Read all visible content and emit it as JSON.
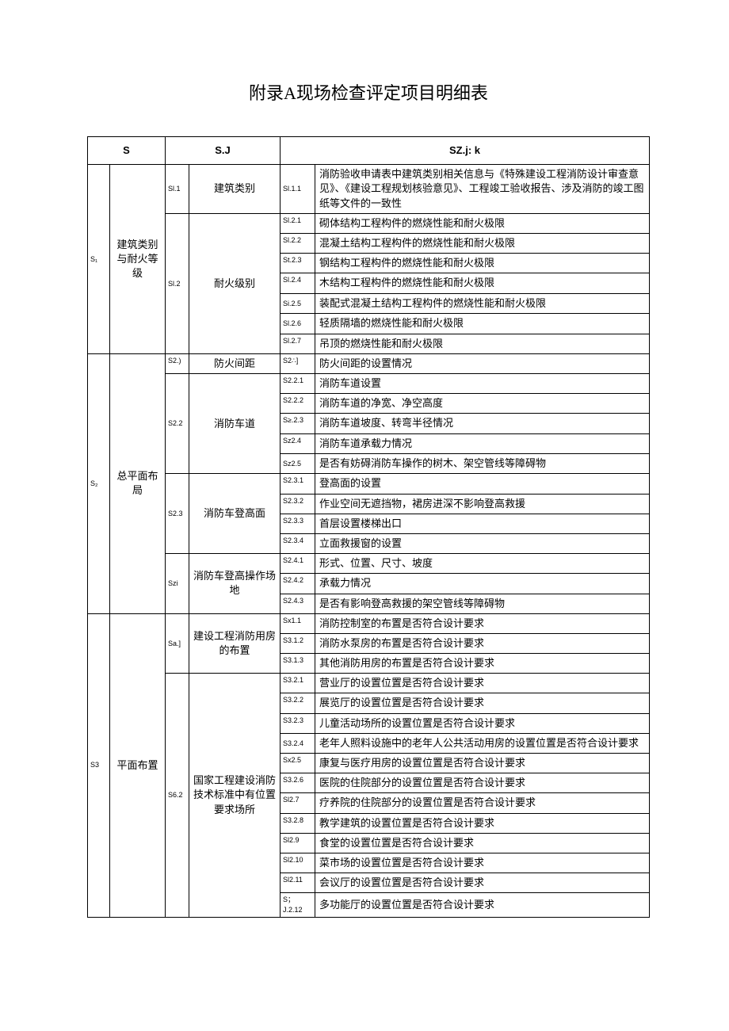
{
  "title": "附录A现场检查评定项目明细表",
  "headers": {
    "h1": "S",
    "h2": "S.J",
    "h3": "SZ.j: k"
  },
  "s1": {
    "code": "S₁",
    "name": "建筑类别与耐火等级",
    "j1": {
      "code": "Sl.1",
      "name": "建筑类别",
      "k1": {
        "code": "Sl.1.1",
        "desc": "消防验收申请表中建筑类别相关信息与《特殊建设工程消防设计审查意见》、《建设工程规划核验意见》、工程竣工验收报告、涉及消防的竣工图纸等文件的一致性"
      }
    },
    "j2": {
      "code": "Sl.2",
      "name": "耐火级别",
      "k1": {
        "code": "Sl.2.1",
        "desc": "砌体结构工程构件的燃烧性能和耐火极限"
      },
      "k2": {
        "code": "Sl.2.2",
        "desc": "混凝土结构工程构件的燃烧性能和耐火极限"
      },
      "k3": {
        "code": "St.2.3",
        "desc": "钢结构工程构件的燃烧性能和耐火极限"
      },
      "k4": {
        "code": "Sl.2.4",
        "desc": "木结构工程构件的燃烧性能和耐火极限"
      },
      "k5": {
        "code": "Si.2.5",
        "desc": "装配式混凝土结构工程构件的燃烧性能和耐火极限"
      },
      "k6": {
        "code": "Sl.2.6",
        "desc": "轻质隔墙的燃烧性能和耐火极限"
      },
      "k7": {
        "code": "Sl.2.7",
        "desc": "吊顶的燃烧性能和耐火极限"
      }
    }
  },
  "s2": {
    "code": "S₂",
    "name": "总平面布局",
    "j1": {
      "code": "S2.)",
      "name": "防火间距",
      "k1": {
        "code": "S2∴]",
        "desc": "防火间距的设置情况"
      }
    },
    "j2": {
      "code": "S2.2",
      "name": "消防车道",
      "k1": {
        "code": "S2.2.1",
        "desc": "消防车道设置"
      },
      "k2": {
        "code": "S2.2.2",
        "desc": "消防车道的净宽、净空高度"
      },
      "k3": {
        "code": "S≥.2.3",
        "desc": "消防车道坡度、转弯半径情况"
      },
      "k4": {
        "code": "Sz2.4",
        "desc": "消防车道承载力情况"
      },
      "k5": {
        "code": "Sz2.5",
        "desc": "是否有妨碍消防车操作的树木、架空管线等障碍物"
      }
    },
    "j3": {
      "code": "S2.3",
      "name": "消防车登高面",
      "k1": {
        "code": "S2.3.1",
        "desc": "登高面的设置"
      },
      "k2": {
        "code": "S2.3.2",
        "desc": "作业空间无遮挡物，裙房进深不影响登高救援"
      },
      "k3": {
        "code": "S2.3.3",
        "desc": "首层设置楼梯出口"
      },
      "k4": {
        "code": "S2.3.4",
        "desc": "立面救援窗的设置"
      }
    },
    "j4": {
      "code": "Szi",
      "name": "消防车登高操作场地",
      "k1": {
        "code": "S2.4.1",
        "desc": "形式、位置、尺寸、坡度"
      },
      "k2": {
        "code": "S2.4.2",
        "desc": "承载力情况"
      },
      "k3": {
        "code": "S2.4.3",
        "desc": "是否有影响登高救援的架空管线等障碍物"
      }
    }
  },
  "s3": {
    "code": "S3",
    "name": "平面布置",
    "j1": {
      "code": "Sa.]",
      "name": "建设工程消防用房的布置",
      "k1": {
        "code": "Sx1.1",
        "desc": "消防控制室的布置是否符合设计要求"
      },
      "k2": {
        "code": "S3.1.2",
        "desc": "消防水泵房的布置是否符合设计要求"
      },
      "k3": {
        "code": "S3.1.3",
        "desc": "其他消防用房的布置是否符合设计要求"
      }
    },
    "j2": {
      "code": "S6.2",
      "name": "国家工程建设消防技术标准中有位置要求场所",
      "k1": {
        "code": "S3.2.1",
        "desc": "营业厅的设置位置是否符合设计要求"
      },
      "k2": {
        "code": "S3.2.2",
        "desc": "展览厅的设置位置是否符合设计要求"
      },
      "k3": {
        "code": "S3.2.3",
        "desc": "儿童活动场所的设置位置是否符合设计要求"
      },
      "k4": {
        "code": "S3.2.4",
        "desc": "老年人照料设施中的老年人公共活动用房的设置位置是否符合设计要求"
      },
      "k5": {
        "code": "Sx2.5",
        "desc": "康复与医疗用房的设置位置是否符合设计要求"
      },
      "k6": {
        "code": "S3.2.6",
        "desc": "医院的住院部分的设置位置是否符合设计要求"
      },
      "k7": {
        "code": "Sl2.7",
        "desc": "疗养院的住院部分的设置位置是否符合设计要求"
      },
      "k8": {
        "code": "S3.2.8",
        "desc": "教学建筑的设置位置是否符合设计要求"
      },
      "k9": {
        "code": "Sl2.9",
        "desc": "食堂的设置位置是否符合设计要求"
      },
      "k10": {
        "code": "Sl2.10",
        "desc": "菜市场的设置位置是否符合设计要求"
      },
      "k11": {
        "code": "Sl2.11",
        "desc": "会议厅的设置位置是否符合设计要求"
      },
      "k12": {
        "code": "S；J.2.12",
        "desc": "多功能厅的设置位置是否符合设计要求"
      }
    }
  }
}
